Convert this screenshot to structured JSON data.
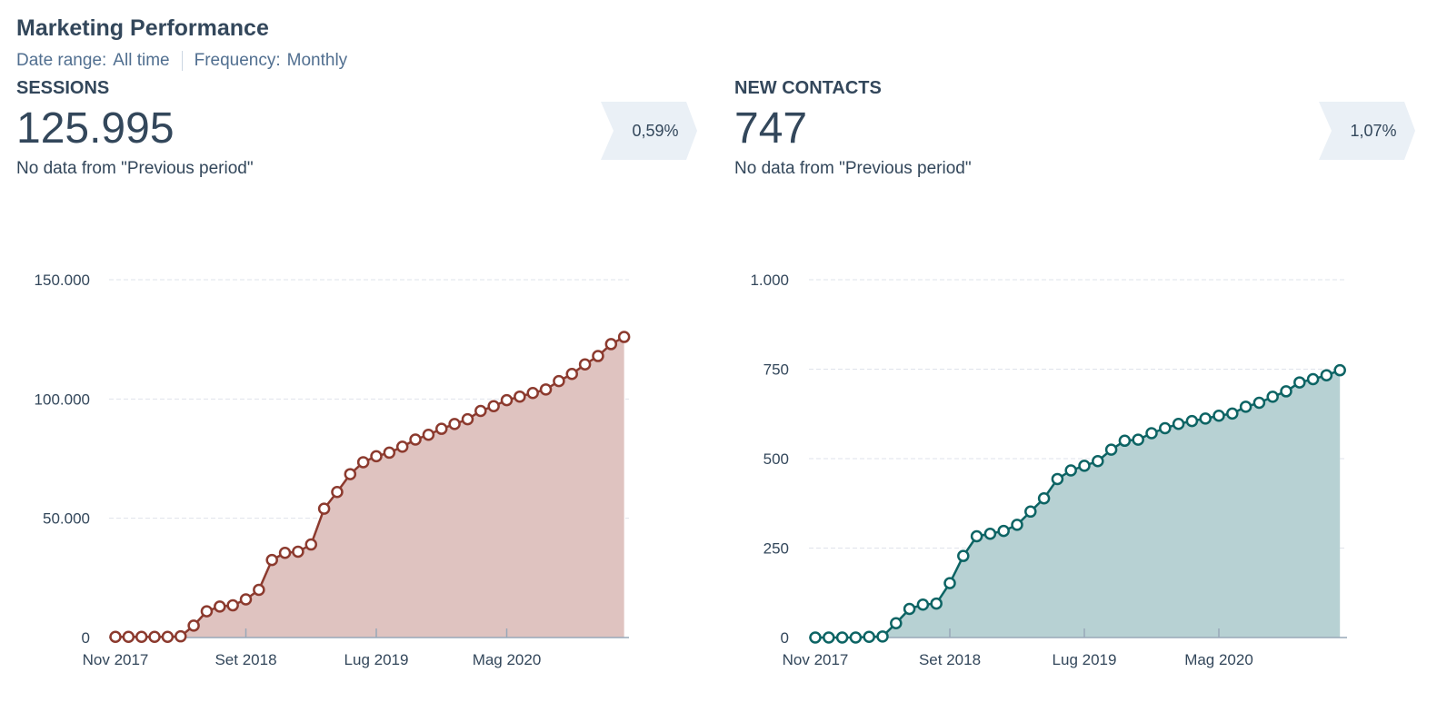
{
  "header": {
    "title": "Marketing Performance",
    "date_range_label": "Date range:",
    "date_range_value": "All time",
    "frequency_label": "Frequency:",
    "frequency_value": "Monthly"
  },
  "kpis": [
    {
      "label": "SESSIONS",
      "value": "125.995",
      "note": "No data from \"Previous period\"",
      "change": "0,59%"
    },
    {
      "label": "NEW CONTACTS",
      "value": "747",
      "note": "No data from \"Previous period\"",
      "change": "1,07%"
    }
  ],
  "colors": {
    "sessions_line": "#8c3a2e",
    "sessions_fill": "#dfc3c0",
    "contacts_line": "#0d6464",
    "contacts_fill": "#b7d1d3",
    "grid": "#dfe3eb",
    "axis": "#99a8b8"
  },
  "chart_data": [
    {
      "type": "area",
      "title": "SESSIONS",
      "xlabel": "",
      "ylabel": "",
      "ylim": [
        0,
        150000
      ],
      "y_ticks": [
        0,
        50000,
        100000,
        150000
      ],
      "y_tick_labels": [
        "0",
        "50.000",
        "100.000",
        "150.000"
      ],
      "x_tick_labels": [
        "Nov 2017",
        "Set 2018",
        "Lug 2019",
        "Mag 2020"
      ],
      "x_tick_indices": [
        0,
        10,
        20,
        30
      ],
      "grid": true,
      "series": [
        {
          "name": "Sessions",
          "values": [
            300,
            300,
            300,
            300,
            300,
            500,
            5000,
            11000,
            13000,
            13500,
            16000,
            20000,
            32500,
            35500,
            36000,
            39000,
            54000,
            61000,
            68500,
            73500,
            76000,
            77500,
            80000,
            83000,
            85000,
            87500,
            89500,
            91500,
            95000,
            97000,
            99500,
            101000,
            102500,
            104000,
            107500,
            110500,
            114500,
            118000,
            123000,
            126000
          ]
        }
      ]
    },
    {
      "type": "area",
      "title": "NEW CONTACTS",
      "xlabel": "",
      "ylabel": "",
      "ylim": [
        0,
        1000
      ],
      "y_ticks": [
        0,
        250,
        500,
        750,
        1000
      ],
      "y_tick_labels": [
        "0",
        "250",
        "500",
        "750",
        "1.000"
      ],
      "x_tick_labels": [
        "Nov 2017",
        "Set 2018",
        "Lug 2019",
        "Mag 2020"
      ],
      "x_tick_indices": [
        0,
        10,
        20,
        30
      ],
      "grid": true,
      "series": [
        {
          "name": "New contacts",
          "values": [
            0,
            0,
            0,
            0,
            2,
            3,
            40,
            80,
            92,
            95,
            152,
            228,
            283,
            290,
            298,
            315,
            352,
            389,
            443,
            467,
            480,
            493,
            525,
            550,
            553,
            571,
            585,
            597,
            605,
            612,
            620,
            626,
            645,
            656,
            673,
            688,
            713,
            722,
            733,
            747
          ]
        }
      ]
    }
  ]
}
